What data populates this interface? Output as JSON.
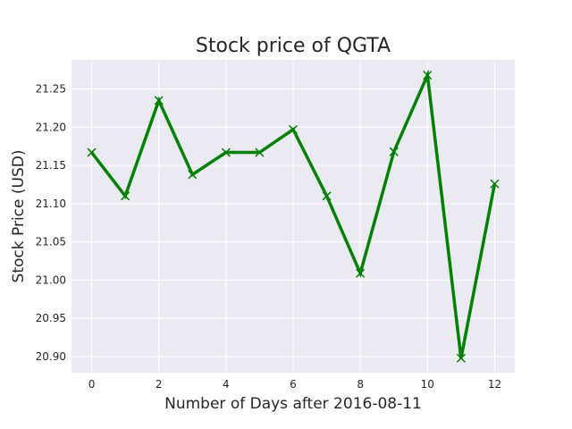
{
  "chart_data": {
    "type": "line",
    "title": "Stock price of QGTA",
    "xlabel": "Number of Days after 2016-08-11",
    "ylabel": "Stock Price (USD)",
    "x": [
      0,
      1,
      2,
      3,
      4,
      5,
      6,
      7,
      8,
      9,
      10,
      11,
      12
    ],
    "series": [
      {
        "values": [
          21.167,
          21.11,
          21.235,
          21.138,
          21.167,
          21.167,
          21.197,
          21.11,
          21.009,
          21.168,
          21.268,
          20.898,
          21.126
        ],
        "color": "#008000",
        "marker": "x"
      }
    ],
    "xlim": [
      -0.6,
      12.6
    ],
    "ylim": [
      20.879,
      21.288
    ],
    "xticks": [
      0,
      2,
      4,
      6,
      8,
      10,
      12
    ],
    "xtick_labels": [
      "0",
      "2",
      "4",
      "6",
      "8",
      "10",
      "12"
    ],
    "yticks": [
      20.9,
      20.95,
      21.0,
      21.05,
      21.1,
      21.15,
      21.2,
      21.25
    ],
    "ytick_labels": [
      "20.90",
      "20.95",
      "21.00",
      "21.05",
      "21.10",
      "21.15",
      "21.20",
      "21.25"
    ],
    "grid": true,
    "style": "seaborn-darkgrid",
    "plot_background": "#eaeaf2",
    "grid_color": "#ffffff"
  }
}
